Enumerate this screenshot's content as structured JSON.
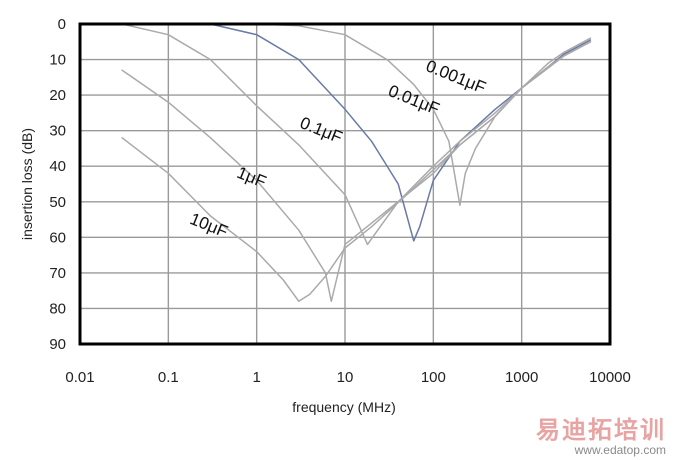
{
  "chart_data": {
    "type": "line",
    "title": "",
    "xlabel": "frequency (MHz)",
    "ylabel": "insertion loss (dB)",
    "x_scale": "log",
    "xlim": [
      0.01,
      10000
    ],
    "ylim": [
      0,
      90
    ],
    "y_inverted": true,
    "grid": true,
    "x_ticks": [
      "0.01",
      "0.1",
      "1",
      "10",
      "100",
      "1000",
      "10000"
    ],
    "y_ticks": [
      "0",
      "10",
      "20",
      "30",
      "40",
      "50",
      "60",
      "70",
      "80",
      "90"
    ],
    "series": [
      {
        "name": "0.001μF",
        "color": "#aaaaaa",
        "label_at": [
          80,
          13
        ],
        "points": [
          [
            1,
            0
          ],
          [
            3,
            0.5
          ],
          [
            10,
            3
          ],
          [
            30,
            10
          ],
          [
            60,
            17
          ],
          [
            100,
            24
          ],
          [
            150,
            33
          ],
          [
            200,
            51
          ],
          [
            230,
            42
          ],
          [
            300,
            35
          ],
          [
            500,
            26
          ],
          [
            1000,
            18
          ],
          [
            2000,
            11
          ],
          [
            3000,
            8
          ],
          [
            6000,
            4
          ]
        ]
      },
      {
        "name": "0.01μF",
        "color": "#6a7aa8",
        "label_at": [
          30,
          20
        ],
        "points": [
          [
            0.3,
            0
          ],
          [
            1,
            3
          ],
          [
            3,
            10
          ],
          [
            10,
            24
          ],
          [
            20,
            33
          ],
          [
            40,
            45
          ],
          [
            60,
            61
          ],
          [
            70,
            57
          ],
          [
            100,
            44
          ],
          [
            200,
            33
          ],
          [
            500,
            24
          ],
          [
            1000,
            18
          ],
          [
            2000,
            12
          ],
          [
            3000,
            8.5
          ],
          [
            6000,
            4.5
          ]
        ]
      },
      {
        "name": "0.1μF",
        "color": "#aaaaaa",
        "label_at": [
          3,
          29
        ],
        "points": [
          [
            0.03,
            0
          ],
          [
            0.1,
            3
          ],
          [
            0.3,
            10
          ],
          [
            1,
            23
          ],
          [
            3,
            34
          ],
          [
            10,
            48
          ],
          [
            18,
            62
          ],
          [
            25,
            57
          ],
          [
            40,
            50
          ],
          [
            100,
            40
          ],
          [
            200,
            33
          ],
          [
            500,
            25
          ],
          [
            1000,
            18
          ],
          [
            2000,
            12
          ],
          [
            3000,
            9
          ],
          [
            6000,
            5
          ]
        ]
      },
      {
        "name": "1μF",
        "color": "#aaaaaa",
        "label_at": [
          0.58,
          43
        ],
        "points": [
          [
            0.03,
            13
          ],
          [
            0.1,
            22
          ],
          [
            0.3,
            32
          ],
          [
            1,
            44
          ],
          [
            3,
            58
          ],
          [
            6,
            70
          ],
          [
            7,
            78
          ],
          [
            8,
            72
          ],
          [
            10,
            62
          ],
          [
            20,
            56
          ],
          [
            50,
            48
          ],
          [
            100,
            42
          ],
          [
            200,
            34
          ],
          [
            500,
            26
          ],
          [
            1000,
            18
          ],
          [
            3000,
            9
          ],
          [
            6000,
            5
          ]
        ]
      },
      {
        "name": "10μF",
        "color": "#aaaaaa",
        "label_at": [
          0.17,
          56
        ],
        "points": [
          [
            0.03,
            32
          ],
          [
            0.1,
            42
          ],
          [
            0.3,
            54
          ],
          [
            1,
            64
          ],
          [
            2,
            72
          ],
          [
            3,
            78
          ],
          [
            4,
            76
          ],
          [
            6,
            71
          ],
          [
            10,
            63
          ],
          [
            20,
            57
          ],
          [
            50,
            48
          ],
          [
            100,
            41
          ],
          [
            200,
            34
          ],
          [
            500,
            26
          ],
          [
            1000,
            18
          ],
          [
            3000,
            9
          ],
          [
            6000,
            5
          ]
        ]
      }
    ]
  },
  "watermark": {
    "text": "易迪拓培训",
    "url": "www.edatop.com"
  }
}
